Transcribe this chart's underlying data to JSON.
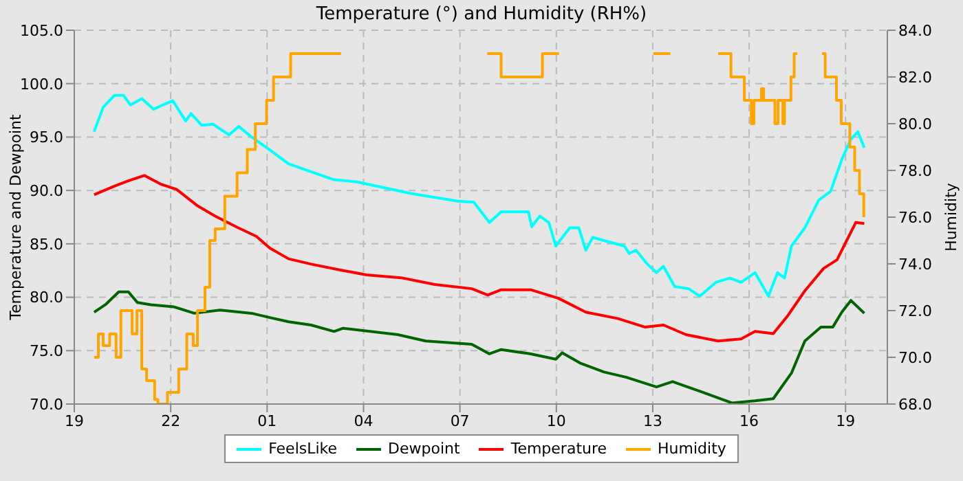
{
  "chart_data": {
    "type": "line",
    "title": "Temperature (°) and Humidity (RH%)",
    "ylabel": "Temperature and Dewpoint",
    "y2label": "Humidity",
    "xlim": [
      "--01-01T19:00",
      "--01-02T20:18"
    ],
    "xticks": [
      {
        "value": "--01-01T19:00",
        "label": "19"
      },
      {
        "value": "--01-01T22:00",
        "label": "22"
      },
      {
        "value": "--01-02T01:00",
        "label": "01"
      },
      {
        "value": "--01-02T04:00",
        "label": "04"
      },
      {
        "value": "--01-02T07:00",
        "label": "07"
      },
      {
        "value": "--01-02T10:00",
        "label": "10"
      },
      {
        "value": "--01-02T13:00",
        "label": "13"
      },
      {
        "value": "--01-02T16:00",
        "label": "16"
      },
      {
        "value": "--01-02T19:00",
        "label": "19"
      }
    ],
    "ylim": [
      70,
      105
    ],
    "yticks": [
      {
        "value": 70,
        "label": "70.0"
      },
      {
        "value": 75,
        "label": "75.0"
      },
      {
        "value": 80,
        "label": "80.0"
      },
      {
        "value": 85,
        "label": "85.0"
      },
      {
        "value": 90,
        "label": "90.0"
      },
      {
        "value": 95,
        "label": "95.0"
      },
      {
        "value": 100,
        "label": "100.0"
      },
      {
        "value": 105,
        "label": "105.0"
      }
    ],
    "y2lim": [
      68,
      84
    ],
    "y2ticks": [
      {
        "value": 68,
        "label": "68.0"
      },
      {
        "value": 70,
        "label": "70.0"
      },
      {
        "value": 72,
        "label": "72.0"
      },
      {
        "value": 74,
        "label": "74.0"
      },
      {
        "value": 76,
        "label": "76.0"
      },
      {
        "value": 78,
        "label": "78.0"
      },
      {
        "value": 80,
        "label": "80.0"
      },
      {
        "value": 82,
        "label": "82.0"
      },
      {
        "value": 84,
        "label": "84.0"
      }
    ],
    "grid": true,
    "legend": "bottom",
    "marker": "none",
    "line_style": "solid",
    "series": [
      {
        "name": "FeelsLike",
        "color": "#00ffff",
        "x": [
          "--01-01T19:37",
          "--01-01T19:54",
          "--01-01T20:15",
          "--01-01T20:32",
          "--01-01T20:45",
          "--01-01T21:06",
          "--01-01T21:28",
          "--01-01T21:45",
          "--01-01T22:04",
          "--01-01T22:28",
          "--01-01T22:38",
          "--01-01T22:58",
          "--01-01T23:19",
          "--01-01T23:49",
          "--01-02T00:07",
          "--01-02T00:31",
          "--01-02T01:05",
          "--01-02T01:40",
          "--01-02T02:31",
          "--01-02T03:05",
          "--01-02T03:48",
          "--01-02T05:30",
          "--01-02T06:56",
          "--01-02T07:26",
          "--01-02T07:55",
          "--01-02T08:17",
          "--01-02T09:08",
          "--01-02T09:14",
          "--01-02T09:29",
          "--01-02T09:46",
          "--01-02T09:59",
          "--01-02T10:25",
          "--01-02T10:42",
          "--01-02T10:55",
          "--01-02T11:08",
          "--01-02T11:37",
          "--01-02T12:07",
          "--01-02T12:16",
          "--01-02T12:29",
          "--01-02T12:50",
          "--01-02T13:07",
          "--01-02T13:20",
          "--01-02T13:41",
          "--01-02T14:07",
          "--01-02T14:28",
          "--01-02T14:58",
          "--01-02T15:24",
          "--01-02T15:45",
          "--01-02T16:11",
          "--01-02T16:36",
          "--01-02T16:53",
          "--01-02T17:06",
          "--01-02T17:19",
          "--01-02T17:44",
          "--01-02T18:10",
          "--01-02T18:32",
          "--01-02T18:53",
          "--01-02T19:10",
          "--01-02T19:23",
          "--01-02T19:35"
        ],
        "values": [
          95.5,
          97.8,
          98.9,
          98.9,
          98,
          98.6,
          97.6,
          98,
          98.4,
          96.5,
          97.2,
          96.1,
          96.2,
          95.2,
          96,
          95,
          93.8,
          92.5,
          91.6,
          91,
          90.8,
          89.7,
          89,
          88.9,
          87,
          88,
          88,
          86.6,
          87.6,
          87,
          84.8,
          86.5,
          86.5,
          84.4,
          85.6,
          85.2,
          84.8,
          84.1,
          84.4,
          83.1,
          82.3,
          82.9,
          81,
          80.8,
          80.1,
          81.4,
          81.8,
          81.4,
          82.3,
          80.1,
          82.3,
          81.8,
          84.8,
          86.5,
          89.1,
          89.9,
          92.9,
          94.8,
          95.5,
          94
        ]
      },
      {
        "name": "Dewpoint",
        "color": "#006400",
        "x": [
          "--01-01T19:37",
          "--01-01T19:58",
          "--01-01T20:23",
          "--01-01T20:41",
          "--01-01T20:58",
          "--01-01T21:23",
          "--01-01T22:06",
          "--01-01T22:44",
          "--01-01T23:32",
          "--01-02T00:31",
          "--01-02T01:05",
          "--01-02T01:40",
          "--01-02T02:22",
          "--01-02T03:05",
          "--01-02T03:22",
          "--01-02T05:04",
          "--01-02T05:56",
          "--01-02T07:22",
          "--01-02T07:55",
          "--01-02T08:17",
          "--01-02T09:12",
          "--01-02T09:59",
          "--01-02T10:11",
          "--01-02T10:46",
          "--01-02T11:29",
          "--01-02T12:11",
          "--01-02T13:07",
          "--01-02T13:37",
          "--01-02T14:28",
          "--01-02T15:28",
          "--01-02T16:11",
          "--01-02T16:45",
          "--01-02T17:19",
          "--01-02T17:44",
          "--01-02T18:14",
          "--01-02T18:36",
          "--01-02T18:53",
          "--01-02T19:10",
          "--01-02T19:35"
        ],
        "values": [
          78.6,
          79.3,
          80.5,
          80.5,
          79.5,
          79.3,
          79.1,
          78.5,
          78.8,
          78.5,
          78.1,
          77.7,
          77.4,
          76.8,
          77.1,
          76.5,
          75.9,
          75.6,
          74.7,
          75.1,
          74.7,
          74.2,
          74.8,
          73.8,
          73,
          72.5,
          71.6,
          72.1,
          71.2,
          70.1,
          70.3,
          70.5,
          72.9,
          75.9,
          77.2,
          77.2,
          78.6,
          79.7,
          78.5
        ]
      },
      {
        "name": "Temperature",
        "color": "#ff0000",
        "x": [
          "--01-01T19:37",
          "--01-01T20:15",
          "--01-01T20:41",
          "--01-01T21:11",
          "--01-01T21:41",
          "--01-01T22:11",
          "--01-01T22:49",
          "--01-01T23:23",
          "--01-02T00:06",
          "--01-02T00:40",
          "--01-02T01:05",
          "--01-02T01:40",
          "--01-02T02:22",
          "--01-02T03:22",
          "--01-02T04:05",
          "--01-02T05:13",
          "--01-02T06:13",
          "--01-02T07:22",
          "--01-02T07:52",
          "--01-02T08:17",
          "--01-02T09:12",
          "--01-02T10:04",
          "--01-02T10:55",
          "--01-02T11:55",
          "--01-02T12:46",
          "--01-02T13:20",
          "--01-02T14:02",
          "--01-02T15:02",
          "--01-02T15:45",
          "--01-02T16:11",
          "--01-02T16:45",
          "--01-02T17:11",
          "--01-02T17:44",
          "--01-02T18:19",
          "--01-02T18:44",
          "--01-02T19:01",
          "--01-02T19:19",
          "--01-02T19:35"
        ],
        "values": [
          89.6,
          90.4,
          90.9,
          91.4,
          90.6,
          90.1,
          88.6,
          87.6,
          86.5,
          85.7,
          84.6,
          83.6,
          83.1,
          82.5,
          82.1,
          81.8,
          81.2,
          80.8,
          80.2,
          80.7,
          80.7,
          79.9,
          78.6,
          78,
          77.2,
          77.4,
          76.5,
          75.9,
          76.1,
          76.8,
          76.6,
          78.2,
          80.6,
          82.7,
          83.5,
          85.2,
          87,
          86.9
        ]
      },
      {
        "name": "Humidity",
        "type": "step",
        "axis": "y2",
        "color": "#ffa500",
        "x": [
          "--01-01T19:37",
          "--01-01T19:45",
          "--01-01T19:54",
          "--01-01T20:06",
          "--01-01T20:18",
          "--01-01T20:27",
          "--01-01T20:48",
          "--01-01T20:57",
          "--01-01T21:06",
          "--01-01T21:15",
          "--01-01T21:30",
          "--01-01T21:36",
          "--01-01T21:54",
          "--01-01T22:15",
          "--01-01T22:30",
          "--01-01T22:42",
          "--01-01T22:50",
          "--01-01T23:04",
          "--01-01T23:13",
          "--01-01T23:23",
          "--01-01T23:41",
          "--01-02T00:04",
          "--01-02T00:23",
          "--01-02T00:38",
          "--01-02T00:59",
          "--01-02T01:12",
          "--01-02T01:44",
          "--01-02T03:18",
          "--01-02T03:19",
          "--01-02T07:51",
          "--01-02T08:17",
          "--01-02T09:34",
          "--01-02T10:05",
          "--01-02T10:06",
          "--01-02T13:01",
          "--01-02T13:33",
          "--01-02T13:34",
          "--01-02T15:02",
          "--01-02T15:26",
          "--01-02T15:51",
          "--01-02T16:04",
          "--01-02T16:09",
          "--01-02T16:23",
          "--01-02T16:27",
          "--01-02T16:48",
          "--01-02T16:54",
          "--01-02T17:03",
          "--01-02T17:06",
          "--01-02T17:18",
          "--01-02T17:24",
          "--01-02T17:30",
          "--01-02T17:31",
          "--01-02T18:16",
          "--01-02T18:22",
          "--01-02T18:43",
          "--01-02T18:52",
          "--01-02T19:08",
          "--01-02T19:17",
          "--01-02T19:26",
          "--01-02T19:34"
        ],
        "values": [
          70,
          71,
          70.5,
          71,
          70,
          72,
          71,
          72,
          69.5,
          69,
          68.2,
          68,
          68.5,
          69.5,
          71,
          70.5,
          72,
          73,
          75,
          75.5,
          76.9,
          77.9,
          78.9,
          80,
          81,
          82,
          83,
          83,
          null,
          83,
          82,
          83,
          83,
          null,
          83,
          83,
          null,
          83,
          82,
          81,
          80,
          81,
          81.5,
          81,
          80,
          81,
          80,
          81,
          82,
          83,
          83,
          null,
          83,
          82,
          81,
          80,
          79,
          78,
          77,
          76
        ]
      }
    ]
  }
}
